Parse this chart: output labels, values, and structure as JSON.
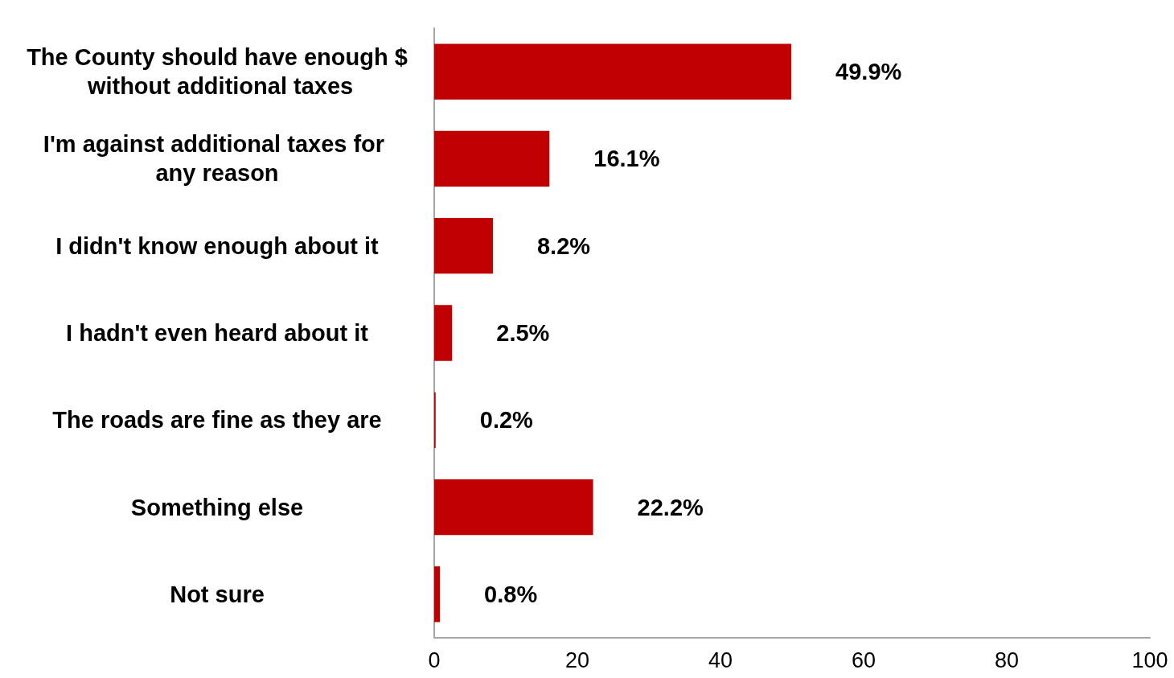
{
  "chart_data": {
    "type": "bar",
    "orientation": "horizontal",
    "categories": [
      "The County should have enough $ without additional taxes",
      "I'm against additional taxes for any reason",
      "I didn't know enough about it",
      "I hadn't even heard about it",
      "The roads are fine as they are",
      "Something else",
      "Not sure"
    ],
    "values": [
      49.9,
      16.1,
      8.2,
      2.5,
      0.2,
      22.2,
      0.8
    ],
    "value_labels": [
      "49.9%",
      "16.1%",
      "8.2%",
      "2.5%",
      "0.2%",
      "22.2%",
      "0.8%"
    ],
    "color": "#c00000",
    "xlim": [
      0,
      100
    ],
    "xticks": [
      0,
      20,
      40,
      60,
      80,
      100
    ],
    "grid": false
  }
}
